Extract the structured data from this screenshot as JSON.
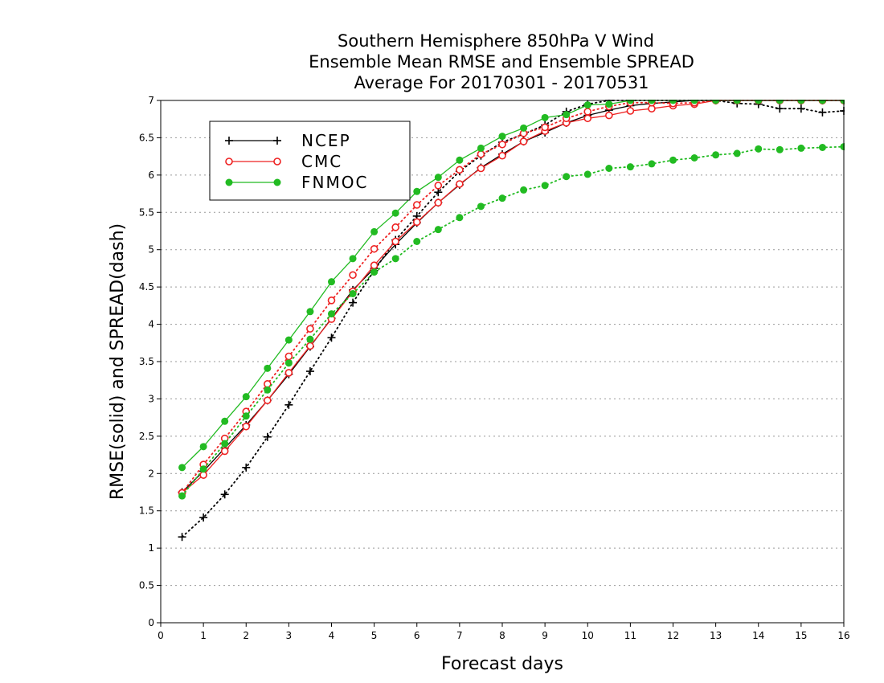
{
  "chart_data": {
    "type": "line",
    "title": [
      "Southern Hemisphere 850hPa V Wind",
      "Ensemble Mean RMSE and Ensemble SPREAD",
      "Average For 20170301 - 20170531"
    ],
    "xlabel": "Forecast days",
    "ylabel": "RMSE(solid) and SPREAD(dash)",
    "xlim": [
      0,
      16
    ],
    "ylim": [
      0,
      7
    ],
    "xticks": [
      "0",
      "1",
      "2",
      "3",
      "4",
      "5",
      "6",
      "7",
      "8",
      "9",
      "10",
      "11",
      "12",
      "13",
      "14",
      "15",
      "16"
    ],
    "yticks": [
      "0",
      "0.5",
      "1",
      "1.5",
      "2",
      "2.5",
      "3",
      "3.5",
      "4",
      "4.5",
      "5",
      "5.5",
      "6",
      "6.5",
      "7"
    ],
    "grid": true,
    "legend_position": "top-left",
    "x": [
      0.5,
      1,
      1.5,
      2,
      2.5,
      3,
      3.5,
      4,
      4.5,
      5,
      5.5,
      6,
      6.5,
      7,
      7.5,
      8,
      8.5,
      9,
      9.5,
      10,
      10.5,
      11,
      11.5,
      12,
      12.5,
      13,
      13.5,
      14,
      14.5,
      15,
      15.5,
      16
    ],
    "series": [
      {
        "name": "NCEP",
        "style": "solid",
        "color": "#000000",
        "marker": "plus",
        "values": [
          1.75,
          2.03,
          2.34,
          2.65,
          2.98,
          3.33,
          3.7,
          4.08,
          4.46,
          4.75,
          5.07,
          5.36,
          5.63,
          5.87,
          6.1,
          6.28,
          6.45,
          6.57,
          6.7,
          6.8,
          6.87,
          6.93,
          6.96,
          6.98,
          7.0,
          7.0,
          7.0,
          7.0,
          7.0,
          7.0,
          7.0,
          7.0
        ]
      },
      {
        "name": "NCEP",
        "style": "dotted",
        "color": "#000000",
        "marker": "plus",
        "values": [
          1.15,
          1.41,
          1.72,
          2.08,
          2.49,
          2.92,
          3.37,
          3.82,
          4.29,
          4.72,
          5.13,
          5.45,
          5.77,
          6.05,
          6.26,
          6.44,
          6.55,
          6.67,
          6.85,
          6.95,
          7.0,
          7.0,
          7.0,
          7.0,
          7.0,
          7.0,
          6.96,
          6.95,
          6.89,
          6.89,
          6.84,
          6.86
        ]
      },
      {
        "name": "CMC",
        "style": "solid",
        "color": "#ee2222",
        "marker": "circle",
        "values": [
          1.74,
          1.98,
          2.3,
          2.63,
          2.98,
          3.35,
          3.71,
          4.07,
          4.44,
          4.79,
          5.11,
          5.37,
          5.63,
          5.88,
          6.09,
          6.26,
          6.45,
          6.59,
          6.7,
          6.76,
          6.8,
          6.86,
          6.89,
          6.93,
          6.95,
          7.0,
          7.0,
          7.0,
          7.0,
          7.0,
          7.0,
          7.0
        ]
      },
      {
        "name": "CMC",
        "style": "dotted",
        "color": "#ee2222",
        "marker": "circle",
        "values": [
          1.74,
          2.12,
          2.47,
          2.83,
          3.2,
          3.57,
          3.94,
          4.32,
          4.66,
          5.01,
          5.3,
          5.6,
          5.86,
          6.07,
          6.28,
          6.41,
          6.56,
          6.64,
          6.76,
          6.85,
          6.92,
          6.97,
          6.97,
          6.96,
          6.97,
          7.0,
          7.0,
          7.0,
          7.0,
          7.0,
          7.0,
          7.0
        ]
      },
      {
        "name": "FNMOC",
        "style": "solid",
        "color": "#22bb22",
        "marker": "dot",
        "values": [
          2.08,
          2.36,
          2.7,
          3.03,
          3.41,
          3.79,
          4.17,
          4.57,
          4.88,
          5.24,
          5.49,
          5.78,
          5.97,
          6.2,
          6.36,
          6.52,
          6.63,
          6.77,
          6.81,
          6.94,
          6.95,
          7.0,
          7.0,
          7.0,
          7.0,
          7.0,
          7.0,
          7.0,
          7.0,
          7.0,
          7.0,
          7.0
        ]
      },
      {
        "name": "FNMOC",
        "style": "dotted",
        "color": "#22bb22",
        "marker": "dot",
        "values": [
          1.7,
          2.06,
          2.4,
          2.77,
          3.12,
          3.48,
          3.8,
          4.14,
          4.41,
          4.7,
          4.88,
          5.11,
          5.27,
          5.43,
          5.58,
          5.69,
          5.8,
          5.86,
          5.98,
          6.01,
          6.09,
          6.11,
          6.15,
          6.2,
          6.23,
          6.27,
          6.29,
          6.35,
          6.34,
          6.36,
          6.37,
          6.38
        ]
      }
    ],
    "legend": [
      {
        "name": "NCEP",
        "color": "#000000",
        "marker": "plus"
      },
      {
        "name": "CMC",
        "color": "#ee2222",
        "marker": "circle"
      },
      {
        "name": "FNMOC",
        "color": "#22bb22",
        "marker": "dot"
      }
    ]
  }
}
